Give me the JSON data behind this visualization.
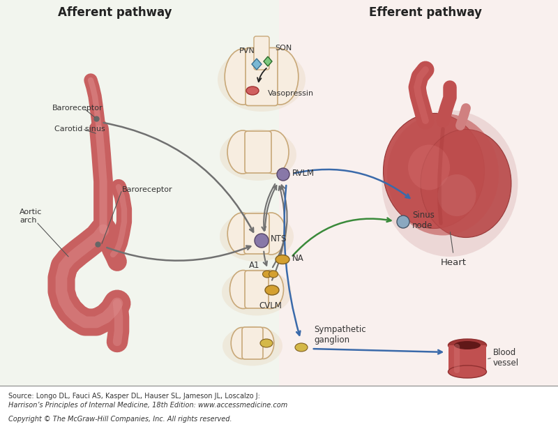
{
  "title_left": "Afferent pathway",
  "title_right": "Efferent pathway",
  "bg_left_color": "#e8ede0",
  "bg_right_color": "#f5e4e0",
  "labels": {
    "baroreceptor1": "Baroreceptor",
    "carotid": "Carotid sinus",
    "baroreceptor2": "Baroreceptor",
    "aortic": "Aortic\narch",
    "pvn": "PVN",
    "son": "SON",
    "vasopressin": "Vasopressin",
    "rvlm": "RVLM",
    "nts": "NTS",
    "na": "NA",
    "a1": "A1",
    "cvlm": "CVLM",
    "symp": "Sympathetic\nganglion",
    "sinus_node": "Sinus\nnode",
    "heart": "Heart",
    "blood_vessel": "Blood\nvessel"
  },
  "source_line1": "Source: Longo DL, Fauci AS, Kasper DL, Hauser SL, Jameson JL, Loscalzo J:",
  "source_line2": "Harrison’s Principles of Internal Medicine, 18th Edition: www.accessmedicine.com",
  "copyright_text": "Copyright © The McGraw-Hill Companies, Inc. All rights reserved.",
  "node_colors": {
    "pvn": "#7ab8d4",
    "son": "#7ec87e",
    "vasopressin_dot": "#d06060",
    "rvlm": "#8878a8",
    "nts": "#8878a8",
    "na": "#d4a030",
    "a1": "#d4a030",
    "cvlm": "#d4a030",
    "symp1": "#d4b848",
    "symp2": "#d4b848",
    "sinus_node": "#8aa8c0"
  },
  "brain_fill": "#f7ede0",
  "brain_edge": "#c8a878",
  "brain_shadow": "#e8d8c0",
  "aorta_main": "#c86060",
  "aorta_highlight": "#e09090",
  "aorta_dark": "#a04040",
  "heart_main": "#c05050",
  "heart_light": "#d87070",
  "heart_dark": "#903030",
  "vessel_main": "#c05050",
  "vessel_dark": "#903030",
  "arrow_gray": "#707070",
  "arrow_green": "#3a8a3a",
  "arrow_blue": "#3a6aaa",
  "note_color": "#333333"
}
